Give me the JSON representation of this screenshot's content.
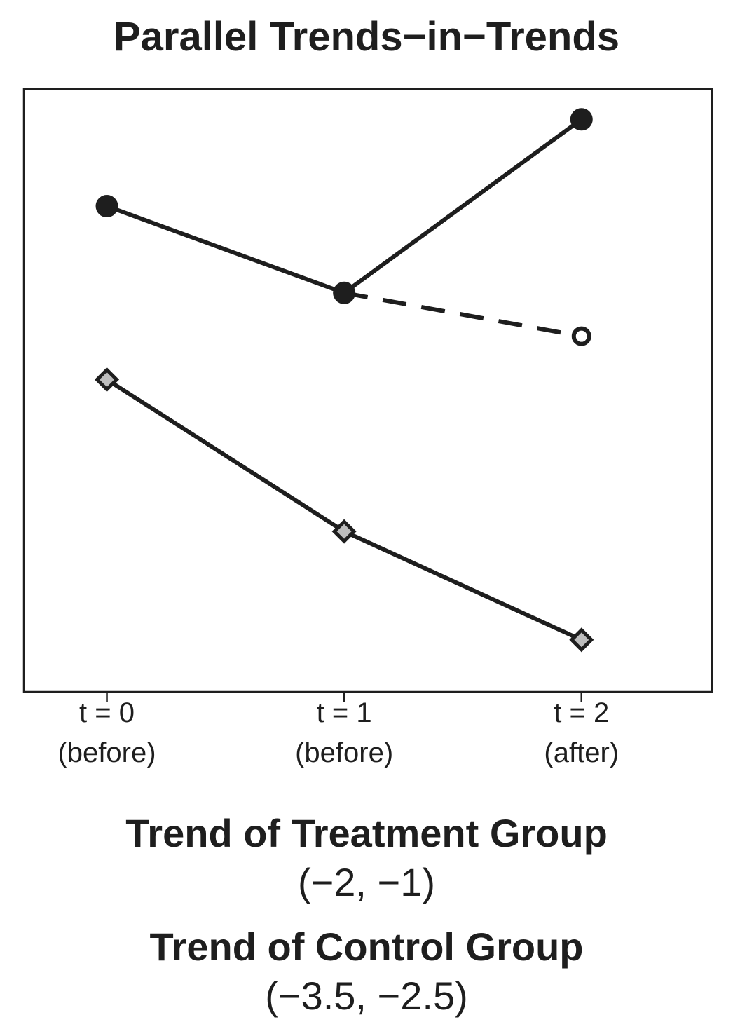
{
  "chart_data": {
    "type": "line",
    "title": "Parallel Trends−in−Trends",
    "xlabel": "",
    "ylabel": "",
    "x": [
      0,
      1,
      2
    ],
    "x_tick_labels": [
      {
        "line1": "t = 0",
        "line2": "(before)"
      },
      {
        "line1": "t = 1",
        "line2": "(before)"
      },
      {
        "line1": "t = 2",
        "line2": "(after)"
      }
    ],
    "xlim": [
      -0.35,
      2.55
    ],
    "ylim": [
      -7.2,
      6.7
    ],
    "y_axis_shown": false,
    "grid": false,
    "legend": "none",
    "series": [
      {
        "key": "treatment_observed",
        "values": [
          4.0,
          2.0,
          6.0
        ],
        "style": "solid",
        "marker": "filled-circle",
        "color": "#1e1e1e"
      },
      {
        "key": "treatment_counterfactual",
        "x": [
          1,
          2
        ],
        "values": [
          2.0,
          1.0
        ],
        "style": "dashed",
        "marker": "open-circle-end",
        "color": "#1e1e1e"
      },
      {
        "key": "control",
        "values": [
          0.0,
          -3.5,
          -6.0
        ],
        "style": "solid",
        "marker": "diamond",
        "marker_fill": "#bdbdbd",
        "color": "#1e1e1e"
      }
    ]
  },
  "captions": {
    "treatment_head": "Trend of Treatment Group",
    "treatment_values": "(−2, −1)",
    "control_head": "Trend of Control Group",
    "control_values": "(−3.5, −2.5)"
  },
  "colors": {
    "ink": "#1e1e1e",
    "diamond_fill": "#bdbdbd",
    "background": "#ffffff"
  }
}
